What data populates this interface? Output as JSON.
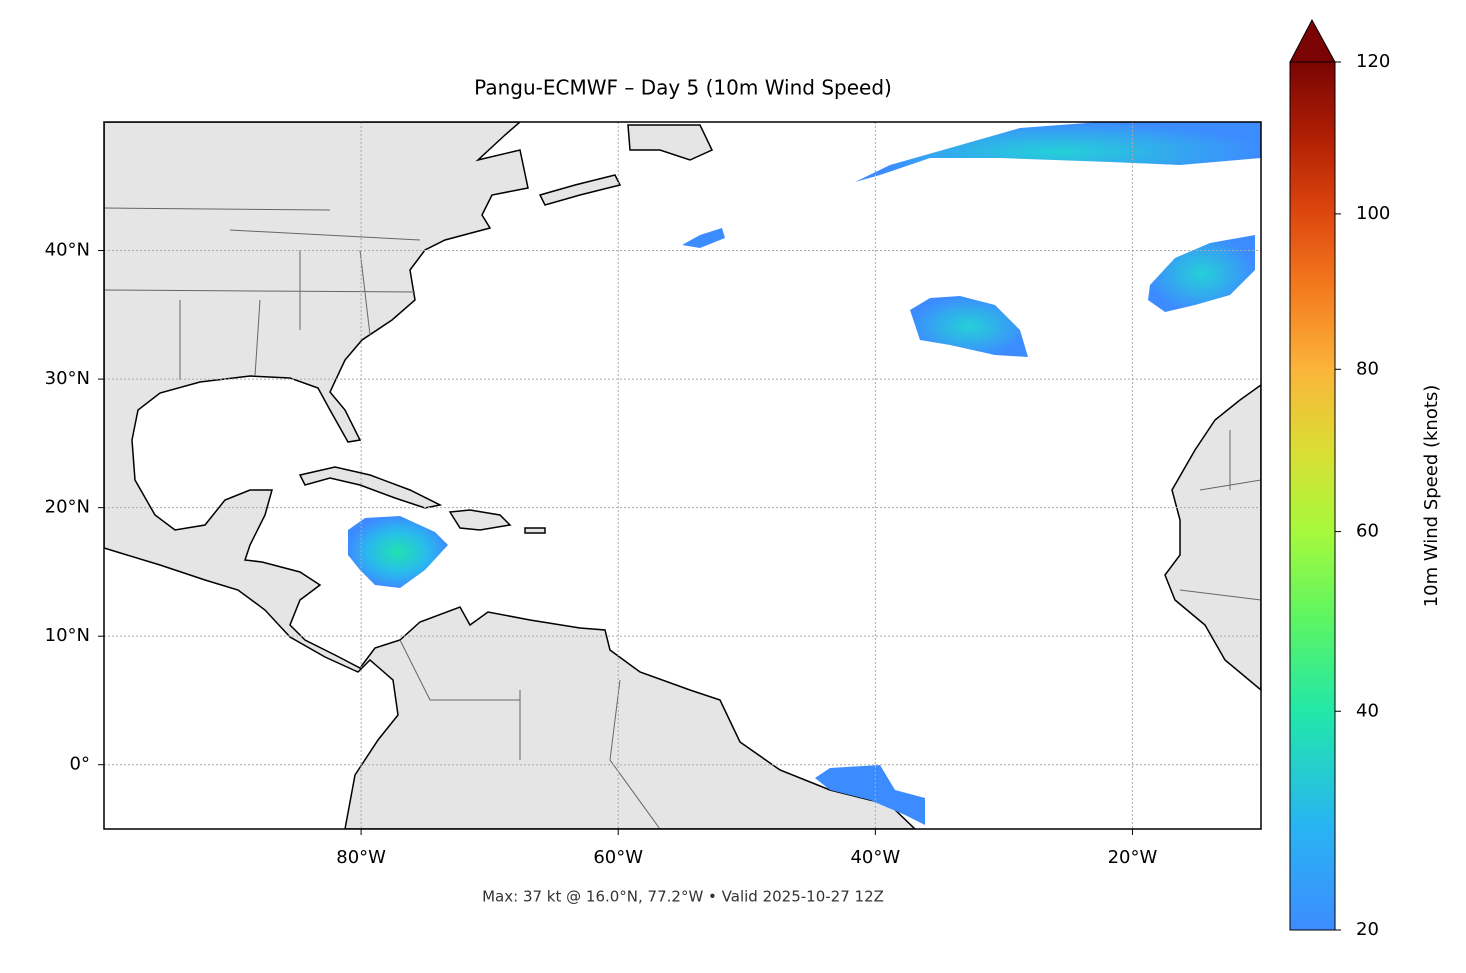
{
  "chart_data": {
    "type": "map",
    "title": "Pangu-ECMWF – Day 5 (10m Wind Speed)",
    "annotation": "Max: 37 kt @ 16.0°N, 77.2°W • Valid 2025-10-27 12Z",
    "xlim": [
      -100,
      -10
    ],
    "ylim": [
      -5,
      50
    ],
    "xticks": [
      {
        "value": -80,
        "label": "80°W"
      },
      {
        "value": -60,
        "label": "60°W"
      },
      {
        "value": -40,
        "label": "40°W"
      },
      {
        "value": -20,
        "label": "20°W"
      }
    ],
    "yticks": [
      {
        "value": 0,
        "label": "0°"
      },
      {
        "value": 10,
        "label": "10°N"
      },
      {
        "value": 20,
        "label": "20°N"
      },
      {
        "value": 30,
        "label": "30°N"
      },
      {
        "value": 40,
        "label": "40°N"
      }
    ],
    "grid": true,
    "colorbar": {
      "label": "10m Wind Speed (knots)",
      "clim": [
        20,
        120
      ],
      "ticks": [
        20,
        40,
        60,
        80,
        100,
        120
      ]
    }
  }
}
